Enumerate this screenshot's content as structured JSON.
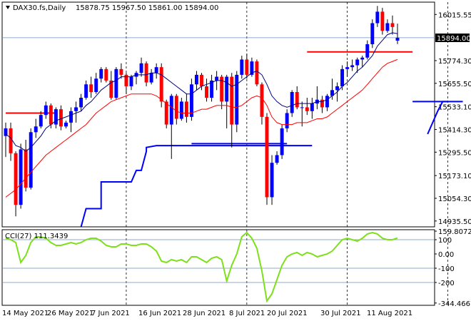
{
  "header": {
    "symbol": "DAX30.fs,Daily",
    "ohlc": "15878.75 15967.50 15861.00 15894.00"
  },
  "price_axis": {
    "ticks": [
      "16015.55",
      "15894.00",
      "15774.30",
      "15655.50",
      "15533.10",
      "15414.30",
      "15295.50",
      "15173.10",
      "15054.30",
      "14935.50"
    ],
    "current": "15894.00"
  },
  "cci": {
    "label": "CCI(27) 111.3439",
    "ticks": [
      "159.8072",
      "100",
      "0.00",
      "-100",
      "-200",
      "-344.4667"
    ],
    "levels": [
      100,
      -100,
      -200
    ]
  },
  "x_axis": {
    "labels": [
      "14 May 2021",
      "26 May 2021",
      "7 Jun 2021",
      "16 Jun 2021",
      "28 Jun 2021",
      "8 Jul 2021",
      "20 Jul 2021",
      "30 Jul 2021",
      "11 Aug 2021"
    ]
  },
  "colors": {
    "bull": "#0000ff",
    "bear": "#ff0000",
    "ma_fast": "#000080",
    "ma_slow": "#ff0000",
    "cci_line": "#7ee01a",
    "level_lines": "#6a8fbf"
  },
  "chart_data": {
    "type": "candlestick",
    "title": "DAX30.fs,Daily",
    "ylim": [
      14905,
      16080
    ],
    "candles": [
      [
        15380,
        15450,
        15270,
        15420
      ],
      [
        15420,
        15450,
        15250,
        15290
      ],
      [
        15290,
        15300,
        14960,
        15020
      ],
      [
        15020,
        15340,
        15000,
        15310
      ],
      [
        15310,
        15360,
        15090,
        15110
      ],
      [
        15110,
        15420,
        15100,
        15400
      ],
      [
        15400,
        15470,
        15370,
        15430
      ],
      [
        15430,
        15510,
        15420,
        15490
      ],
      [
        15490,
        15560,
        15470,
        15540
      ],
      [
        15540,
        15550,
        15420,
        15440
      ],
      [
        15440,
        15530,
        15420,
        15520
      ],
      [
        15520,
        15540,
        15410,
        15430
      ],
      [
        15430,
        15460,
        15420,
        15450
      ],
      [
        15450,
        15530,
        15400,
        15510
      ],
      [
        15510,
        15560,
        15450,
        15530
      ],
      [
        15530,
        15600,
        15510,
        15580
      ],
      [
        15580,
        15670,
        15570,
        15650
      ],
      [
        15650,
        15690,
        15580,
        15610
      ],
      [
        15610,
        15710,
        15600,
        15680
      ],
      [
        15680,
        15740,
        15660,
        15730
      ],
      [
        15730,
        15740,
        15660,
        15670
      ],
      [
        15670,
        15720,
        15570,
        15580
      ],
      [
        15580,
        15740,
        15570,
        15730
      ],
      [
        15730,
        15760,
        15680,
        15700
      ],
      [
        15700,
        15710,
        15600,
        15640
      ],
      [
        15640,
        15700,
        15620,
        15690
      ],
      [
        15690,
        15720,
        15650,
        15710
      ],
      [
        15710,
        15790,
        15690,
        15760
      ],
      [
        15760,
        15770,
        15640,
        15660
      ],
      [
        15660,
        15730,
        15650,
        15710
      ],
      [
        15710,
        15760,
        15680,
        15740
      ],
      [
        15740,
        15760,
        15530,
        15560
      ],
      [
        15560,
        15570,
        15420,
        15440
      ],
      [
        15440,
        15600,
        15260,
        15590
      ],
      [
        15590,
        15600,
        15440,
        15470
      ],
      [
        15470,
        15580,
        15460,
        15560
      ],
      [
        15560,
        15600,
        15450,
        15480
      ],
      [
        15480,
        15680,
        15460,
        15650
      ],
      [
        15650,
        15720,
        15620,
        15700
      ],
      [
        15700,
        15710,
        15620,
        15640
      ],
      [
        15640,
        15680,
        15560,
        15580
      ],
      [
        15580,
        15700,
        15560,
        15670
      ],
      [
        15670,
        15720,
        15620,
        15690
      ],
      [
        15690,
        15700,
        15520,
        15560
      ],
      [
        15560,
        15700,
        15420,
        15690
      ],
      [
        15690,
        15710,
        15320,
        15440
      ],
      [
        15440,
        15720,
        15400,
        15700
      ],
      [
        15700,
        15800,
        15680,
        15780
      ],
      [
        15780,
        15810,
        15680,
        15700
      ],
      [
        15700,
        15790,
        15690,
        15770
      ],
      [
        15770,
        15780,
        15640,
        15650
      ],
      [
        15650,
        15660,
        15440,
        15480
      ],
      [
        15480,
        15500,
        15020,
        15060
      ],
      [
        15060,
        15280,
        15020,
        15240
      ],
      [
        15240,
        15300,
        15230,
        15280
      ],
      [
        15280,
        15440,
        15260,
        15420
      ],
      [
        15420,
        15520,
        15400,
        15500
      ],
      [
        15500,
        15620,
        15480,
        15610
      ],
      [
        15610,
        15640,
        15520,
        15530
      ],
      [
        15530,
        15560,
        15430,
        15530
      ],
      [
        15530,
        15580,
        15490,
        15510
      ],
      [
        15510,
        15580,
        15470,
        15550
      ],
      [
        15550,
        15640,
        15520,
        15570
      ],
      [
        15570,
        15590,
        15500,
        15530
      ],
      [
        15530,
        15600,
        15510,
        15590
      ],
      [
        15590,
        15680,
        15570,
        15620
      ],
      [
        15620,
        15660,
        15560,
        15640
      ],
      [
        15640,
        15750,
        15620,
        15730
      ],
      [
        15730,
        15770,
        15690,
        15740
      ],
      [
        15740,
        15780,
        15720,
        15750
      ],
      [
        15750,
        15790,
        15710,
        15780
      ],
      [
        15780,
        15800,
        15740,
        15790
      ],
      [
        15790,
        15880,
        15780,
        15860
      ],
      [
        15860,
        15990,
        15840,
        15970
      ],
      [
        15970,
        16060,
        15950,
        16030
      ],
      [
        16030,
        16050,
        15910,
        15930
      ],
      [
        15930,
        15990,
        15920,
        15970
      ],
      [
        15970,
        16010,
        15910,
        15950
      ],
      [
        15878.75,
        15967.5,
        15861,
        15894
      ]
    ],
    "ma_fast": [
      15390,
      15370,
      15330,
      15320,
      15300,
      15320,
      15350,
      15380,
      15420,
      15440,
      15460,
      15470,
      15480,
      15490,
      15500,
      15510,
      15540,
      15560,
      15590,
      15620,
      15640,
      15660,
      15670,
      15690,
      15690,
      15690,
      15700,
      15700,
      15700,
      15710,
      15710,
      15700,
      15680,
      15660,
      15640,
      15620,
      15600,
      15600,
      15620,
      15640,
      15650,
      15660,
      15670,
      15670,
      15660,
      15640,
      15650,
      15670,
      15690,
      15710,
      15720,
      15700,
      15650,
      15590,
      15560,
      15540,
      15530,
      15540,
      15550,
      15550,
      15550,
      15550,
      15560,
      15560,
      15570,
      15590,
      15610,
      15640,
      15660,
      15690,
      15720,
      15740,
      15770,
      15800,
      15850,
      15880,
      15910,
      15920,
      15915
    ],
    "ma_slow": [
      15060,
      15080,
      15100,
      15130,
      15160,
      15190,
      15220,
      15250,
      15280,
      15300,
      15320,
      15340,
      15360,
      15380,
      15400,
      15420,
      15440,
      15470,
      15500,
      15520,
      15540,
      15560,
      15570,
      15580,
      15590,
      15600,
      15600,
      15600,
      15600,
      15600,
      15590,
      15570,
      15550,
      15530,
      15510,
      15500,
      15500,
      15500,
      15510,
      15520,
      15520,
      15530,
      15540,
      15540,
      15540,
      15530,
      15530,
      15540,
      15560,
      15580,
      15590,
      15580,
      15540,
      15480,
      15450,
      15440,
      15440,
      15440,
      15450,
      15450,
      15450,
      15460,
      15470,
      15470,
      15480,
      15500,
      15520,
      15540,
      15560,
      15580,
      15600,
      15620,
      15650,
      15680,
      15710,
      15740,
      15760,
      15770,
      15780
    ],
    "support_resistance": [
      {
        "color": "#ff0000",
        "from": 0,
        "to": 10,
        "y": 15500
      },
      {
        "color": "#0000ff",
        "from": 37,
        "to": 56,
        "y": 15340
      },
      {
        "color": "#ff0000",
        "from": 60,
        "to": 81,
        "y": 15820
      },
      {
        "color": "#0000ff",
        "from": 81,
        "to": 88,
        "y": 15560
      }
    ],
    "stepped_line": [
      [
        15,
        14905
      ],
      [
        16,
        15000
      ],
      [
        16,
        15000
      ],
      [
        19,
        15000
      ],
      [
        19,
        15140
      ],
      [
        25,
        15140
      ],
      [
        26,
        15200
      ],
      [
        27,
        15200
      ],
      [
        28,
        15300
      ],
      [
        28,
        15320
      ],
      [
        30,
        15330
      ],
      [
        61,
        15330
      ]
    ],
    "stepped_line_b": [
      [
        84,
        15390
      ],
      [
        86,
        15510
      ],
      [
        87,
        15560
      ],
      [
        91,
        15560
      ]
    ],
    "cci_ylim": [
      -360,
      170
    ],
    "cci_values": [
      110,
      100,
      80,
      -60,
      -10,
      80,
      120,
      120,
      110,
      80,
      60,
      60,
      70,
      80,
      70,
      80,
      100,
      110,
      110,
      90,
      60,
      50,
      50,
      70,
      70,
      60,
      60,
      70,
      70,
      50,
      20,
      -50,
      -60,
      -40,
      -50,
      -40,
      -60,
      -20,
      -20,
      -40,
      -60,
      -30,
      -20,
      -40,
      -190,
      -80,
      0,
      120,
      150,
      110,
      40,
      -120,
      -330,
      -280,
      -180,
      -80,
      -20,
      0,
      10,
      -10,
      10,
      0,
      -20,
      -10,
      0,
      20,
      60,
      100,
      110,
      100,
      90,
      110,
      140,
      150,
      140,
      110,
      100,
      100,
      111.34
    ]
  }
}
